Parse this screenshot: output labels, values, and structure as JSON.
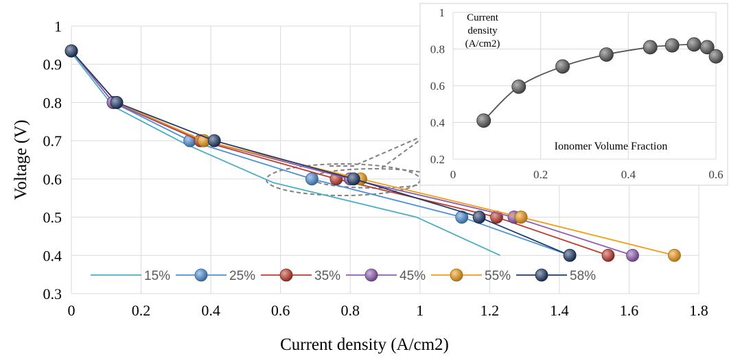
{
  "chart_data": [
    {
      "type": "line",
      "title": "",
      "xlabel": "Current density (A/cm2)",
      "ylabel": "Voltage (V)",
      "xlim": [
        0,
        1.8
      ],
      "ylim": [
        0.3,
        1
      ],
      "xticks": [
        "0",
        "0.2",
        "0.4",
        "0.6",
        "0.8",
        "1",
        "1.2",
        "1.4",
        "1.6",
        "1.8"
      ],
      "yticks": [
        "0.3",
        "0.4",
        "0.5",
        "0.6",
        "0.7",
        "0.8",
        "0.9",
        "1"
      ],
      "grid": true,
      "legend_position": "bottom-inside",
      "series": [
        {
          "name": "15%",
          "color": "#4bacc6",
          "marker": false,
          "x": [
            0,
            0.12,
            0.33,
            0.58,
            0.99,
            1.23
          ],
          "y": [
            0.93,
            0.79,
            0.69,
            0.59,
            0.5,
            0.4
          ]
        },
        {
          "name": "25%",
          "color": "#4a90d9",
          "marker": true,
          "x": [
            0,
            0.12,
            0.34,
            0.69,
            1.12,
            1.43
          ],
          "y": [
            0.935,
            0.8,
            0.7,
            0.6,
            0.5,
            0.4
          ]
        },
        {
          "name": "35%",
          "color": "#c0392b",
          "marker": true,
          "x": [
            0,
            0.12,
            0.37,
            0.76,
            1.22,
            1.54
          ],
          "y": [
            0.935,
            0.8,
            0.7,
            0.6,
            0.5,
            0.4
          ]
        },
        {
          "name": "45%",
          "color": "#8e5bb5",
          "marker": true,
          "x": [
            0,
            0.12,
            0.38,
            0.8,
            1.27,
            1.61
          ],
          "y": [
            0.935,
            0.8,
            0.7,
            0.6,
            0.5,
            0.4
          ]
        },
        {
          "name": "55%",
          "color": "#f39c12",
          "marker": true,
          "x": [
            0,
            0.13,
            0.38,
            0.83,
            1.29,
            1.73
          ],
          "y": [
            0.935,
            0.8,
            0.7,
            0.6,
            0.5,
            0.4
          ]
        },
        {
          "name": "58%",
          "color": "#1f3a6b",
          "marker": true,
          "x": [
            0,
            0.13,
            0.41,
            0.81,
            1.17,
            1.43
          ],
          "y": [
            0.935,
            0.8,
            0.7,
            0.6,
            0.5,
            0.4
          ]
        }
      ]
    },
    {
      "type": "line",
      "title": "",
      "xlabel": "Ionomer Volume Fraction",
      "ylabel": "Current density (A/cm2)",
      "ylabel_lines": [
        "Current",
        "density",
        "(A/cm2)"
      ],
      "xlim": [
        0,
        0.6
      ],
      "ylim": [
        0.2,
        1
      ],
      "xticks": [
        "0",
        "0.2",
        "0.4",
        "0.6"
      ],
      "yticks": [
        "0.2",
        "0.4",
        "0.6",
        "0.8",
        "1"
      ],
      "grid": true,
      "series": [
        {
          "name": "",
          "color": "#555555",
          "x": [
            0.07,
            0.15,
            0.25,
            0.35,
            0.45,
            0.5,
            0.55,
            0.58,
            0.6
          ],
          "y": [
            0.41,
            0.595,
            0.705,
            0.77,
            0.81,
            0.82,
            0.825,
            0.81,
            0.76
          ]
        }
      ]
    }
  ]
}
